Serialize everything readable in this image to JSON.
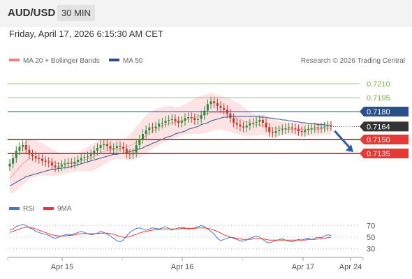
{
  "header": {
    "symbol": "AUD/USD",
    "timeframe": "30 MIN"
  },
  "datetime": "Friday, April 17, 2026 6:15:30 AM CET",
  "legend": {
    "ma20": {
      "label": "MA 20 + Bollinger Bands",
      "color": "#f08080"
    },
    "ma50": {
      "label": "MA 50",
      "color": "#2b4f8c"
    }
  },
  "copyright": "Research © 2026 Trading Central",
  "colors": {
    "up": "#2e8b3a",
    "down": "#c0392b",
    "resistance": "#9ccc65",
    "support": "#e53935",
    "pivot": "#2b4f8c",
    "price": "#333333",
    "arrow": "#2b5aa0",
    "rsi": "#4a78c8",
    "rsi_ma": "#e53935"
  },
  "chart_data": [
    {
      "type": "candlestick",
      "title": "AUD/USD",
      "timeframe": "30 MIN",
      "ylim": [
        0.709,
        0.7225
      ],
      "x_ticks": [
        "Apr 15",
        "Apr 16",
        "Apr 17",
        "Apr 24"
      ],
      "levels": [
        {
          "label": "0.7210",
          "value": 0.721,
          "kind": "resistance"
        },
        {
          "label": "0.7195",
          "value": 0.7195,
          "kind": "resistance"
        },
        {
          "label": "0.7180",
          "value": 0.718,
          "kind": "pivot"
        },
        {
          "label": "0.7164",
          "value": 0.7164,
          "kind": "price"
        },
        {
          "label": "0.7150",
          "value": 0.715,
          "kind": "support"
        },
        {
          "label": "0.7135",
          "value": 0.7135,
          "kind": "support"
        }
      ],
      "close": [
        0.7124,
        0.713,
        0.7138,
        0.7142,
        0.7144,
        0.7139,
        0.7134,
        0.7132,
        0.713,
        0.7129,
        0.7127,
        0.7126,
        0.7125,
        0.7122,
        0.712,
        0.7121,
        0.7123,
        0.7124,
        0.7125,
        0.7124,
        0.7126,
        0.7128,
        0.713,
        0.7131,
        0.7132,
        0.7134,
        0.7138,
        0.7141,
        0.7144,
        0.7145,
        0.7143,
        0.714,
        0.7141,
        0.7143,
        0.7142,
        0.714,
        0.7135,
        0.7134,
        0.7136,
        0.7144,
        0.715,
        0.7156,
        0.716,
        0.7163,
        0.7162,
        0.7164,
        0.7167,
        0.7168,
        0.717,
        0.7171,
        0.7172,
        0.717,
        0.7168,
        0.717,
        0.7173,
        0.7174,
        0.7173,
        0.7171,
        0.7172,
        0.7176,
        0.7181,
        0.7188,
        0.7191,
        0.7189,
        0.7186,
        0.7184,
        0.7182,
        0.7178,
        0.7173,
        0.7168,
        0.7166,
        0.7164,
        0.7163,
        0.7165,
        0.7167,
        0.7168,
        0.7169,
        0.7171,
        0.7168,
        0.7163,
        0.7158,
        0.7157,
        0.7159,
        0.716,
        0.7161,
        0.7162,
        0.7163,
        0.7162,
        0.7161,
        0.7159,
        0.7158,
        0.716,
        0.7161,
        0.7162,
        0.7163,
        0.7162,
        0.7163,
        0.7164,
        0.7165,
        0.7164
      ],
      "ma20_upper": [
        0.7128,
        0.7132,
        0.7137,
        0.7142,
        0.7146,
        0.7149,
        0.715,
        0.715,
        0.7149,
        0.7148,
        0.7146,
        0.7144,
        0.7142,
        0.714,
        0.7138,
        0.7136,
        0.7135,
        0.7134,
        0.7134,
        0.7134,
        0.7135,
        0.7136,
        0.7138,
        0.714,
        0.7142,
        0.7144,
        0.7146,
        0.7148,
        0.715,
        0.7151,
        0.7151,
        0.715,
        0.715,
        0.715,
        0.715,
        0.7151,
        0.7152,
        0.7155,
        0.7159,
        0.7164,
        0.7168,
        0.7172,
        0.7176,
        0.7179,
        0.7181,
        0.7183,
        0.7184,
        0.7185,
        0.7186,
        0.7186,
        0.7186,
        0.7185,
        0.7185,
        0.7186,
        0.7188,
        0.719,
        0.7192,
        0.7194,
        0.7196,
        0.7197,
        0.7198,
        0.7199,
        0.72,
        0.7199,
        0.7198,
        0.7197,
        0.7196,
        0.7195,
        0.7194,
        0.7192,
        0.719,
        0.7188,
        0.7185,
        0.7182,
        0.718,
        0.7178,
        0.7177,
        0.7176,
        0.7175,
        0.7174,
        0.7173,
        0.7172,
        0.7171,
        0.717,
        0.7169,
        0.7169,
        0.7168,
        0.7168,
        0.7168,
        0.7168,
        0.7168,
        0.7168,
        0.7168,
        0.7168,
        0.7168,
        0.7168,
        0.7168,
        0.7168,
        0.7169,
        0.7169
      ],
      "ma20": [
        0.7108,
        0.7112,
        0.7116,
        0.712,
        0.7124,
        0.7127,
        0.7129,
        0.713,
        0.713,
        0.713,
        0.7129,
        0.7128,
        0.7127,
        0.7126,
        0.7125,
        0.7124,
        0.7124,
        0.7124,
        0.7124,
        0.7125,
        0.7125,
        0.7126,
        0.7127,
        0.7128,
        0.7129,
        0.713,
        0.7132,
        0.7134,
        0.7136,
        0.7137,
        0.7138,
        0.7139,
        0.7139,
        0.714,
        0.714,
        0.7141,
        0.7142,
        0.7143,
        0.7145,
        0.7147,
        0.7149,
        0.7152,
        0.7154,
        0.7157,
        0.7159,
        0.7161,
        0.7163,
        0.7165,
        0.7166,
        0.7167,
        0.7168,
        0.7169,
        0.717,
        0.717,
        0.7171,
        0.7172,
        0.7173,
        0.7174,
        0.7175,
        0.7176,
        0.7177,
        0.7178,
        0.7179,
        0.7179,
        0.7179,
        0.7179,
        0.7178,
        0.7177,
        0.7176,
        0.7175,
        0.7173,
        0.7172,
        0.717,
        0.7169,
        0.7168,
        0.7167,
        0.7166,
        0.7166,
        0.7165,
        0.7164,
        0.7163,
        0.7163,
        0.7162,
        0.7162,
        0.7162,
        0.7161,
        0.7161,
        0.7161,
        0.7161,
        0.7161,
        0.7161,
        0.7161,
        0.7161,
        0.7161,
        0.7161,
        0.7161,
        0.7162,
        0.7162,
        0.7162,
        0.7162
      ],
      "ma20_lower": [
        0.7092,
        0.7093,
        0.7095,
        0.7098,
        0.7101,
        0.7104,
        0.7107,
        0.7109,
        0.711,
        0.7111,
        0.7111,
        0.7111,
        0.7111,
        0.7111,
        0.7111,
        0.7111,
        0.7112,
        0.7113,
        0.7114,
        0.7115,
        0.7115,
        0.7116,
        0.7116,
        0.7116,
        0.7116,
        0.7116,
        0.7117,
        0.7119,
        0.7121,
        0.7123,
        0.7125,
        0.7127,
        0.7128,
        0.7129,
        0.7129,
        0.7129,
        0.7128,
        0.7128,
        0.7128,
        0.7129,
        0.7131,
        0.7133,
        0.7135,
        0.7138,
        0.714,
        0.7142,
        0.7144,
        0.7146,
        0.7148,
        0.7149,
        0.715,
        0.7152,
        0.7153,
        0.7154,
        0.7155,
        0.7156,
        0.7156,
        0.7156,
        0.7156,
        0.7156,
        0.7157,
        0.7158,
        0.7159,
        0.716,
        0.7161,
        0.7161,
        0.716,
        0.7159,
        0.7158,
        0.7157,
        0.7156,
        0.7155,
        0.7154,
        0.7154,
        0.7154,
        0.7154,
        0.7154,
        0.7155,
        0.7155,
        0.7154,
        0.7153,
        0.7153,
        0.7153,
        0.7154,
        0.7155,
        0.7155,
        0.7155,
        0.7155,
        0.7154,
        0.7154,
        0.7154,
        0.7154,
        0.7154,
        0.7154,
        0.7154,
        0.7154,
        0.7155,
        0.7155,
        0.7155,
        0.7155
      ],
      "ma50": [
        0.71,
        0.7102,
        0.7104,
        0.7106,
        0.7108,
        0.711,
        0.7111,
        0.7112,
        0.7113,
        0.7114,
        0.7115,
        0.7116,
        0.7117,
        0.7118,
        0.7118,
        0.7119,
        0.7119,
        0.712,
        0.712,
        0.7121,
        0.7122,
        0.7123,
        0.7124,
        0.7125,
        0.7126,
        0.7127,
        0.7128,
        0.7129,
        0.713,
        0.7131,
        0.7132,
        0.7133,
        0.7134,
        0.7134,
        0.7135,
        0.7135,
        0.7136,
        0.7137,
        0.7138,
        0.7139,
        0.714,
        0.7141,
        0.7143,
        0.7144,
        0.7146,
        0.7147,
        0.7149,
        0.715,
        0.7152,
        0.7153,
        0.7154,
        0.7156,
        0.7157,
        0.7158,
        0.7159,
        0.7161,
        0.7162,
        0.7163,
        0.7164,
        0.7166,
        0.7167,
        0.7168,
        0.717,
        0.7171,
        0.7172,
        0.7173,
        0.7174,
        0.7174,
        0.7175,
        0.7175,
        0.7175,
        0.7175,
        0.7175,
        0.7175,
        0.7175,
        0.7175,
        0.7175,
        0.7174,
        0.7174,
        0.7174,
        0.7173,
        0.7173,
        0.7172,
        0.7172,
        0.7171,
        0.7171,
        0.717,
        0.717,
        0.7169,
        0.7169,
        0.7168,
        0.7168,
        0.7167,
        0.7167,
        0.7167,
        0.7166,
        0.7166,
        0.7166,
        0.7165,
        0.7165
      ],
      "forecast_arrow": {
        "from": 0.716,
        "to": 0.7135
      }
    },
    {
      "type": "line",
      "legend": [
        {
          "name": "RSI",
          "color": "#4a78c8"
        },
        {
          "name": "9MA",
          "color": "#e53935"
        }
      ],
      "ylim": [
        20,
        80
      ],
      "y_ticks": [
        70,
        50,
        30
      ],
      "series": [
        {
          "name": "RSI",
          "values": [
            62,
            64,
            68,
            70,
            72,
            70,
            66,
            64,
            60,
            58,
            56,
            55,
            53,
            50,
            48,
            50,
            52,
            54,
            55,
            54,
            56,
            58,
            60,
            58,
            56,
            54,
            55,
            57,
            60,
            58,
            55,
            52,
            48,
            44,
            42,
            45,
            52,
            58,
            62,
            65,
            66,
            64,
            62,
            64,
            66,
            65,
            64,
            66,
            68,
            65,
            62,
            64,
            66,
            67,
            66,
            64,
            65,
            66,
            68,
            70,
            68,
            64,
            60,
            55,
            48,
            44,
            46,
            48,
            50,
            48,
            46,
            44,
            43,
            45,
            48,
            50,
            52,
            50,
            46,
            42,
            40,
            42,
            44,
            46,
            47,
            45,
            43,
            42,
            44,
            46,
            45,
            47,
            48,
            46,
            48,
            50,
            49,
            52,
            54,
            53
          ]
        },
        {
          "name": "9MA",
          "values": [
            58,
            60,
            62,
            64,
            66,
            67,
            67,
            66,
            64,
            62,
            60,
            58,
            56,
            54,
            53,
            52,
            52,
            52,
            53,
            53,
            54,
            55,
            56,
            56,
            56,
            56,
            56,
            56,
            57,
            57,
            57,
            56,
            55,
            53,
            51,
            50,
            50,
            51,
            53,
            55,
            57,
            59,
            60,
            61,
            62,
            63,
            63,
            64,
            64,
            64,
            64,
            64,
            64,
            65,
            65,
            65,
            65,
            65,
            66,
            66,
            66,
            65,
            64,
            62,
            60,
            57,
            54,
            52,
            50,
            49,
            48,
            47,
            46,
            46,
            46,
            47,
            47,
            47,
            47,
            46,
            45,
            45,
            45,
            45,
            45,
            45,
            45,
            45,
            45,
            45,
            45,
            45,
            46,
            46,
            46,
            47,
            47,
            48,
            49,
            50
          ]
        }
      ]
    }
  ],
  "x_axis": {
    "ticks": [
      "Apr 15",
      "Apr 16",
      "Apr 17",
      "Apr 24"
    ]
  }
}
